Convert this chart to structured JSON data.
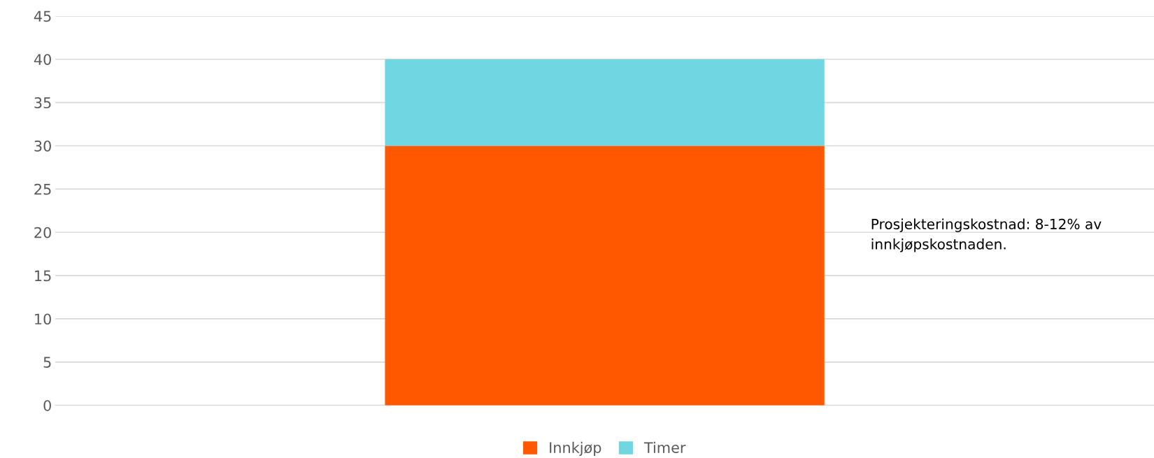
{
  "chart_data": {
    "type": "bar",
    "stacked": true,
    "categories": [
      null
    ],
    "series": [
      {
        "name": "Innkjøp",
        "color": "#ff5800",
        "values": [
          30
        ]
      },
      {
        "name": "Timer",
        "color": "#70d6e1",
        "values": [
          10
        ]
      }
    ],
    "ylim": [
      0,
      45
    ],
    "yticks": [
      0,
      5,
      10,
      15,
      20,
      25,
      30,
      35,
      40,
      45
    ],
    "grid": "y",
    "legend": "bottom",
    "annotations": [
      "Prosjekteringskostnad: 8-12% av innkjøpskostnaden."
    ]
  }
}
